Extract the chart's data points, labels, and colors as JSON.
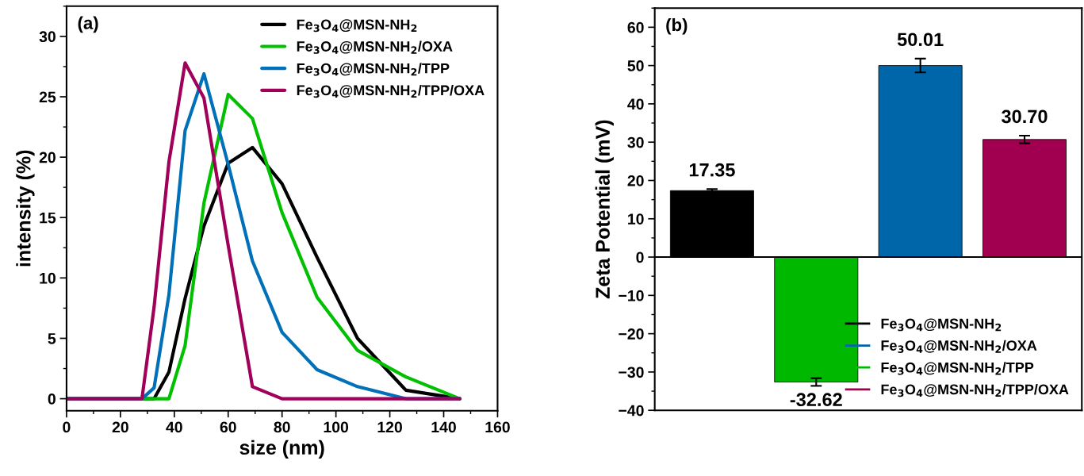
{
  "chart_data": [
    {
      "type": "line",
      "title": "(a)",
      "xlabel": "size (nm)",
      "ylabel": "intensity (%)",
      "x": [
        0,
        28,
        32.5,
        38,
        44,
        51,
        60,
        69,
        80,
        93,
        108,
        126,
        146
      ],
      "series": [
        {
          "name": "Fe$_{3}$O$_{4}$@MSN-NH$_{2}$",
          "color": "#000000",
          "values": [
            0,
            0,
            0,
            2.2,
            8.3,
            14.3,
            19.5,
            20.8,
            17.8,
            11.7,
            5.0,
            0.7,
            0
          ]
        },
        {
          "name": "Fe$_{3}$O$_{4}$@MSN-NH$_{2}$/OXA",
          "color": "#00c000",
          "values": [
            0,
            0,
            0,
            0,
            4.4,
            16.2,
            25.2,
            23.2,
            15.4,
            8.4,
            4.0,
            1.8,
            0
          ]
        },
        {
          "name": "Fe$_{3}$O$_{4}$@MSN-NH$_{2}$/TPP",
          "color": "#0070b8",
          "values": [
            0,
            0,
            0.9,
            8.6,
            22.2,
            26.9,
            19.4,
            11.4,
            5.5,
            2.4,
            1.0,
            0,
            0
          ]
        },
        {
          "name": "Fe$_{3}$O$_{4}$@MSN-NH$_{2}$/TPP/OXA",
          "color": "#a0005a",
          "values": [
            0,
            0,
            7.6,
            19.6,
            27.8,
            24.9,
            12.7,
            1.0,
            0,
            0,
            0,
            0,
            0
          ]
        }
      ],
      "xlim": [
        0,
        160
      ],
      "xticks": [
        0,
        20,
        40,
        60,
        80,
        100,
        120,
        140,
        160
      ],
      "ylim": [
        -1,
        32.5
      ],
      "yticks": [
        0,
        5,
        10,
        15,
        20,
        25,
        30
      ],
      "legend": "top right",
      "grid": false
    },
    {
      "type": "bar",
      "title": "(b)",
      "ylabel": "Zeta Potential (mV)",
      "categories": [
        null,
        null,
        null,
        null
      ],
      "series": [
        {
          "name": "Fe$_{3}$O$_{4}$@MSN-NH$_{2}$",
          "color": "#000000",
          "values": [
            17.35,
            null,
            null,
            null
          ],
          "errors": [
            0.4,
            null,
            null,
            null
          ],
          "value_labels": [
            "17.35",
            null,
            null,
            null
          ]
        },
        {
          "name": "Fe$_{3}$O$_{4}$@MSN-NH$_{2}$/OXA",
          "color": "#0066aa",
          "values": [
            null,
            null,
            50.01,
            null
          ],
          "errors": [
            null,
            null,
            1.8,
            null
          ],
          "value_labels": [
            null,
            null,
            "50.01",
            null
          ]
        },
        {
          "name": "Fe$_{3}$O$_{4}$@MSN-NH$_{2}$/TPP",
          "color": "#00b800",
          "values": [
            null,
            -32.62,
            null,
            null
          ],
          "errors": [
            null,
            1.0,
            null,
            null
          ],
          "value_labels": [
            null,
            "-32.62",
            null,
            null
          ]
        },
        {
          "name": "Fe$_{3}$O$_{4}$@MSN-NH$_{2}$/TPP/OXA",
          "color": "#a0004f",
          "values": [
            null,
            null,
            null,
            30.7
          ],
          "errors": [
            null,
            null,
            null,
            1.0
          ],
          "value_labels": [
            null,
            null,
            null,
            "30.70"
          ]
        }
      ],
      "ylim": [
        -40,
        65
      ],
      "yticks": [
        -40,
        -30,
        -20,
        -10,
        0,
        10,
        20,
        30,
        40,
        50,
        60
      ],
      "ref_lines": [
        {
          "axis": "y",
          "value": 0,
          "color": "#000000"
        }
      ],
      "legend": "bottom right",
      "grid": false
    }
  ]
}
